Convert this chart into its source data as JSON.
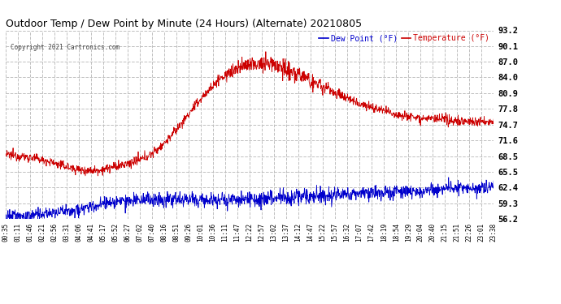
{
  "title": "Outdoor Temp / Dew Point by Minute (24 Hours) (Alternate) 20210805",
  "copyright": "Copyright 2021 Cartronics.com",
  "ylabel_right_ticks": [
    56.2,
    59.3,
    62.4,
    65.5,
    68.5,
    71.6,
    74.7,
    77.8,
    80.9,
    84.0,
    87.0,
    90.1,
    93.2
  ],
  "ymin": 56.2,
  "ymax": 93.2,
  "temp_color": "#cc0000",
  "dew_color": "#0000cc",
  "grid_color": "#c0c0c0",
  "background_color": "#ffffff",
  "legend_dew_label": "Dew Point (°F)",
  "legend_temp_label": "Temperature (°F)",
  "x_tick_labels": [
    "00:35",
    "01:11",
    "01:46",
    "02:21",
    "02:56",
    "03:31",
    "04:06",
    "04:41",
    "05:17",
    "05:52",
    "06:27",
    "07:02",
    "07:40",
    "08:16",
    "08:51",
    "09:26",
    "10:01",
    "10:36",
    "11:11",
    "11:47",
    "12:22",
    "12:57",
    "13:02",
    "13:37",
    "14:12",
    "14:47",
    "15:22",
    "15:57",
    "16:32",
    "17:07",
    "17:42",
    "18:19",
    "18:54",
    "19:29",
    "20:04",
    "20:40",
    "21:15",
    "21:51",
    "22:26",
    "23:01",
    "23:38"
  ],
  "n_points": 1440,
  "figwidth": 6.9,
  "figheight": 3.75,
  "dpi": 100
}
